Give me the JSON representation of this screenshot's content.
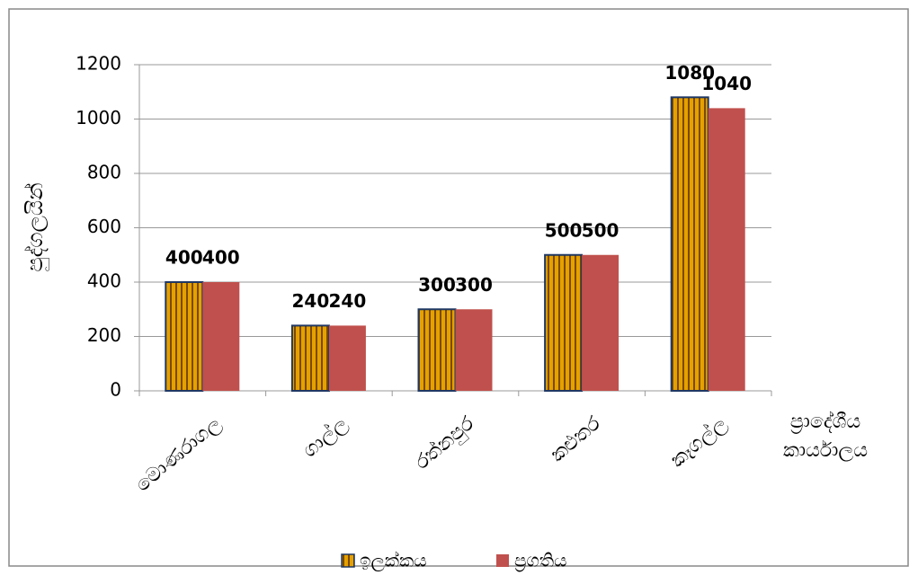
{
  "chart_data": {
    "type": "bar",
    "y_label": "පුද්ගලයින්",
    "x_label": [
      "ප්‍රාදේශීය",
      "කාර්යාලය"
    ],
    "categories": [
      "මොණරාගල",
      "ගාල්ල",
      "රත්නපුර",
      "කළුතර",
      "කෑගල්ල"
    ],
    "series": [
      {
        "name": "ඉලක්කය",
        "color": "#e6a100",
        "pattern": "vertical-stripes",
        "edgecolor": "#1f3864",
        "values": [
          400,
          240,
          300,
          500,
          1080
        ]
      },
      {
        "name": "ප්‍රගතිය",
        "color": "#c0504d",
        "values": [
          400,
          240,
          300,
          500,
          1040
        ]
      }
    ],
    "ylim": [
      0,
      1200
    ],
    "yticks": [
      0,
      200,
      400,
      600,
      800,
      1000,
      1200
    ],
    "grid": true,
    "legend": "bottom"
  }
}
